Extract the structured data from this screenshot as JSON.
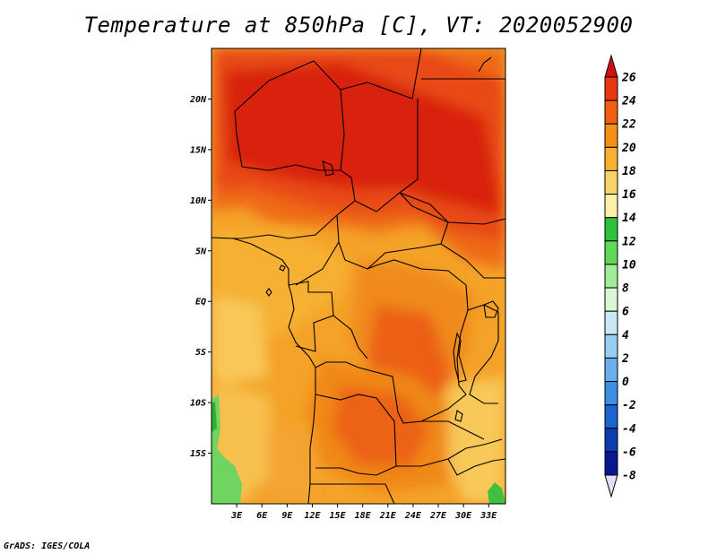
{
  "title": "Temperature at 850hPa [C], VT: 2020052900",
  "credit": "GrADS: IGES/COLA",
  "map": {
    "lon_range": [
      0,
      35
    ],
    "lat_range": [
      -20,
      25
    ],
    "lat_ticks": [
      {
        "value": 20,
        "label": "20N"
      },
      {
        "value": 15,
        "label": "15N"
      },
      {
        "value": 10,
        "label": "10N"
      },
      {
        "value": 5,
        "label": "5N"
      },
      {
        "value": 0,
        "label": "EQ"
      },
      {
        "value": -5,
        "label": "5S"
      },
      {
        "value": -10,
        "label": "10S"
      },
      {
        "value": -15,
        "label": "15S"
      }
    ],
    "lon_ticks": [
      {
        "value": 3,
        "label": "3E"
      },
      {
        "value": 6,
        "label": "6E"
      },
      {
        "value": 9,
        "label": "9E"
      },
      {
        "value": 12,
        "label": "12E"
      },
      {
        "value": 15,
        "label": "15E"
      },
      {
        "value": 18,
        "label": "18E"
      },
      {
        "value": 21,
        "label": "21E"
      },
      {
        "value": 24,
        "label": "24E"
      },
      {
        "value": 27,
        "label": "27E"
      },
      {
        "value": 30,
        "label": "30E"
      },
      {
        "value": 33,
        "label": "33E"
      }
    ]
  },
  "colorbar": {
    "levels": [
      "26",
      "24",
      "22",
      "20",
      "18",
      "16",
      "14",
      "12",
      "10",
      "8",
      "6",
      "4",
      "2",
      "0",
      "-2",
      "-4",
      "-6",
      "-8"
    ],
    "colors": [
      "#d01010",
      "#e83810",
      "#f06010",
      "#f49018",
      "#f8b030",
      "#f8d468",
      "#fcf0a8",
      "#30c040",
      "#60d858",
      "#a0ec98",
      "#d8f8d4",
      "#c8e8f8",
      "#98cef0",
      "#68b0ec",
      "#3c90e4",
      "#1c64d0",
      "#0c3cb0",
      "#081890",
      "#000060"
    ],
    "top_arrow_color": "#d01010",
    "bottom_arrow_color": "#e0e0f8"
  }
}
